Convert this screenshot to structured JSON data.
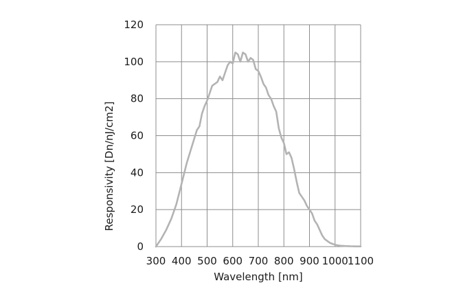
{
  "chart_data": {
    "type": "line",
    "title": "",
    "xlabel": "Wavelength [nm]",
    "ylabel": "Responsivity [Dn/nJ/cm2]",
    "xlim": [
      300,
      1100
    ],
    "ylim": [
      0,
      120
    ],
    "xticks": [
      300,
      400,
      500,
      600,
      700,
      800,
      900,
      1000,
      1100
    ],
    "yticks": [
      0,
      20,
      40,
      60,
      80,
      100,
      120
    ],
    "grid": true,
    "legend": "none",
    "series": [
      {
        "color": "#b3b3b3",
        "x": [
          300,
          320,
          340,
          360,
          380,
          400,
          420,
          440,
          460,
          470,
          480,
          490,
          500,
          520,
          530,
          540,
          550,
          560,
          570,
          580,
          590,
          600,
          610,
          620,
          630,
          640,
          650,
          660,
          670,
          680,
          690,
          700,
          710,
          720,
          730,
          740,
          750,
          760,
          770,
          780,
          790,
          800,
          810,
          820,
          830,
          840,
          850,
          860,
          870,
          880,
          890,
          900,
          910,
          920,
          930,
          940,
          950,
          960,
          970,
          980,
          990,
          1000,
          1010,
          1020,
          1040,
          1060,
          1080,
          1100
        ],
        "y": [
          0,
          4,
          9,
          15,
          23,
          34,
          45,
          54,
          63,
          65,
          72,
          76,
          79,
          87,
          88,
          89,
          92,
          90,
          94,
          98,
          100,
          99,
          105,
          104,
          100,
          105,
          104,
          100,
          102,
          101,
          96,
          95,
          92,
          88,
          86,
          82,
          80,
          76,
          73,
          64,
          59,
          56,
          50,
          51,
          48,
          42,
          35,
          29,
          27,
          25,
          22,
          20,
          18,
          14,
          12,
          9,
          6,
          4,
          3,
          2,
          1.5,
          1,
          0.7,
          0.5,
          0.3,
          0.2,
          0.1,
          0.1
        ]
      }
    ]
  }
}
